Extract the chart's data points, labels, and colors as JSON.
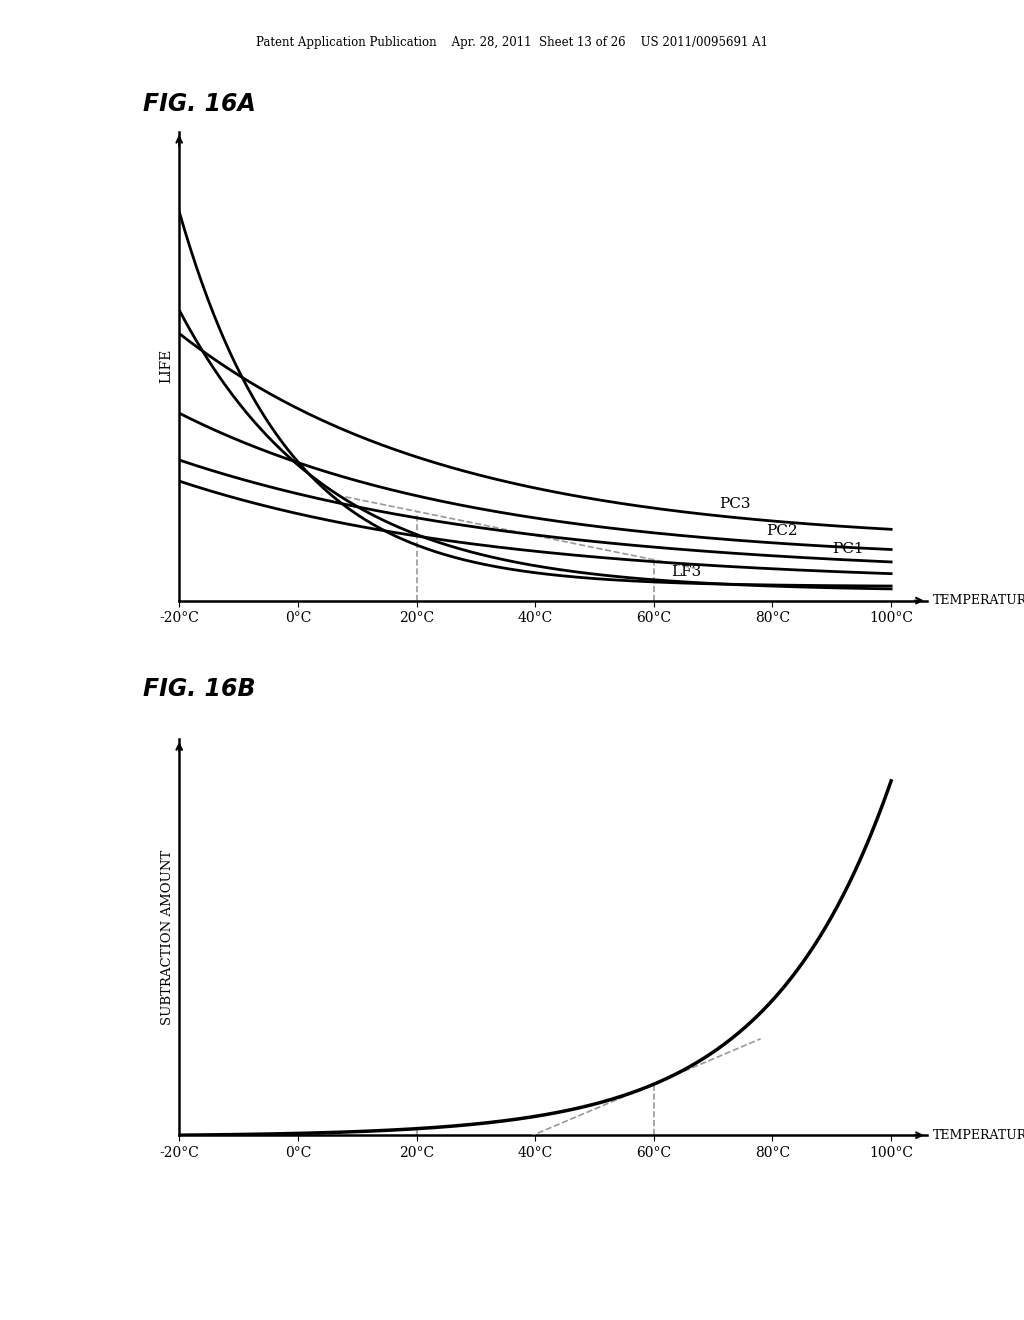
{
  "header_text": "Patent Application Publication    Apr. 28, 2011  Sheet 13 of 26    US 2011/0095691 A1",
  "fig16a_title": "FIG. 16A",
  "fig16b_title": "FIG. 16B",
  "x_ticks": [
    -20,
    0,
    20,
    40,
    60,
    80,
    100
  ],
  "x_tick_labels": [
    "-20°C",
    "0°C",
    "20°C",
    "40°C",
    "60°C",
    "80°C",
    "100°C"
  ],
  "x_label": "TEMPERATURE",
  "fig16a_ylabel": "LIFE",
  "fig16b_ylabel": "SUBTRACTION AMOUNT",
  "background_color": "#ffffff",
  "line_color": "#000000",
  "dashed_color": "#999999"
}
